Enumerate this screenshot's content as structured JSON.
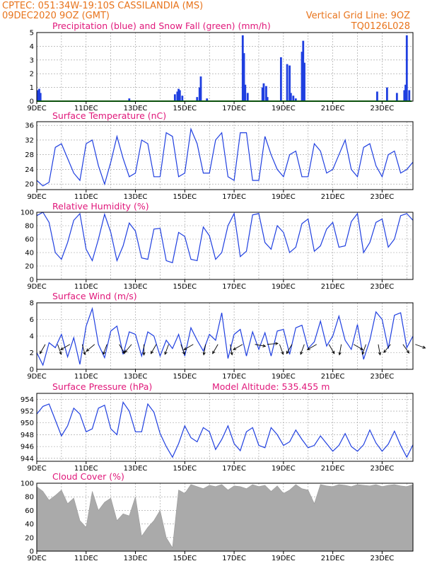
{
  "header": {
    "line1": "CPTEC:   051:34W-19:10S   CASSILANDIA (MS)",
    "line2": "09DEC2020 9OZ (GMT)",
    "grid_note": "Vertical Grid Line: 9OZ",
    "code": "TQ0126L028"
  },
  "colors": {
    "header": "#e8741c",
    "title": "#e0177a",
    "line": "#1f3fe0",
    "snow": "#18a018",
    "cloud": "#aaaaaa"
  },
  "x_ticks": [
    "9DEC",
    "11DEC",
    "13DEC",
    "15DEC",
    "17DEC",
    "19DEC",
    "21DEC",
    "23DEC"
  ],
  "chart_data": [
    {
      "type": "bar",
      "title": "Precipitation (blue) and Snow Fall (green) (mm/h)",
      "ylim": [
        0,
        5
      ],
      "yticks": [
        0,
        1,
        2,
        3,
        4,
        5
      ],
      "series": [
        {
          "name": "Precipitation",
          "color": "#1f3fe0",
          "x": [
            0.05,
            0.1,
            0.15,
            3.75,
            5.6,
            5.7,
            5.75,
            5.8,
            5.9,
            6.5,
            6.6,
            6.65,
            6.9,
            8.35,
            8.4,
            8.45,
            8.55,
            9.15,
            9.2,
            9.3,
            9.35,
            9.9,
            10.15,
            10.25,
            10.3,
            10.4,
            10.5,
            10.75,
            10.8,
            10.85,
            13.8,
            14.2,
            14.6,
            14.9,
            14.95,
            15.0,
            15.1
          ],
          "values": [
            0.8,
            0.9,
            0.6,
            0.2,
            0.5,
            0.7,
            0.9,
            0.8,
            0.4,
            0.3,
            1.0,
            1.8,
            0.2,
            4.8,
            3.5,
            1.2,
            0.6,
            1.0,
            1.3,
            1.1,
            0.3,
            3.2,
            2.7,
            2.6,
            0.6,
            0.4,
            0.2,
            3.6,
            4.4,
            2.8,
            0.7,
            1.0,
            0.6,
            0.8,
            1.2,
            4.8,
            0.8
          ]
        },
        {
          "name": "Snow Fall",
          "color": "#18a018",
          "x": [
            0,
            15.2
          ],
          "values": [
            0,
            0
          ]
        }
      ]
    },
    {
      "type": "line",
      "title": "Surface Temperature (nC)",
      "ylim": [
        18.5,
        37
      ],
      "yticks": [
        20,
        24,
        28,
        32,
        36
      ],
      "x": [
        0.0,
        0.25,
        0.5,
        0.75,
        1.0,
        1.25,
        1.5,
        1.75,
        2.0,
        2.25,
        2.5,
        2.75,
        3.0,
        3.25,
        3.5,
        3.75,
        4.0,
        4.25,
        4.5,
        4.75,
        5.0,
        5.25,
        5.5,
        5.75,
        6.0,
        6.25,
        6.5,
        6.75,
        7.0,
        7.25,
        7.5,
        7.75,
        8.0,
        8.25,
        8.5,
        8.75,
        9.0,
        9.25,
        9.5,
        9.75,
        10.0,
        10.25,
        10.5,
        10.75,
        11.0,
        11.25,
        11.5,
        11.75,
        12.0,
        12.25,
        12.5,
        12.75,
        13.0,
        13.25,
        13.5,
        13.75,
        14.0,
        14.25,
        14.5,
        14.75,
        15.0,
        15.25
      ],
      "values": [
        21,
        19.5,
        20.5,
        30,
        31,
        27,
        23,
        21,
        31,
        32,
        25,
        20,
        26,
        33,
        27,
        22,
        23,
        32,
        31,
        22,
        22,
        34,
        33,
        22,
        23,
        35,
        31,
        23,
        23,
        32,
        34,
        22,
        21,
        34,
        34,
        21,
        21,
        33,
        28,
        24,
        22,
        28,
        29,
        22,
        22,
        31,
        29,
        23,
        24,
        28,
        32,
        24,
        22,
        30,
        31,
        25,
        22,
        28,
        29,
        23,
        24,
        26
      ]
    },
    {
      "type": "line",
      "title": "Relative Humidity (%)",
      "ylim": [
        0,
        100
      ],
      "yticks": [
        0,
        20,
        40,
        60,
        80,
        100
      ],
      "x": [
        0.0,
        0.25,
        0.5,
        0.75,
        1.0,
        1.25,
        1.5,
        1.75,
        2.0,
        2.25,
        2.5,
        2.75,
        3.0,
        3.25,
        3.5,
        3.75,
        4.0,
        4.25,
        4.5,
        4.75,
        5.0,
        5.25,
        5.5,
        5.75,
        6.0,
        6.25,
        6.5,
        6.75,
        7.0,
        7.25,
        7.5,
        7.75,
        8.0,
        8.25,
        8.5,
        8.75,
        9.0,
        9.25,
        9.5,
        9.75,
        10.0,
        10.25,
        10.5,
        10.75,
        11.0,
        11.25,
        11.5,
        11.75,
        12.0,
        12.25,
        12.5,
        12.75,
        13.0,
        13.25,
        13.5,
        13.75,
        14.0,
        14.25,
        14.5,
        14.75,
        15.0,
        15.25
      ],
      "values": [
        95,
        100,
        85,
        40,
        30,
        55,
        88,
        98,
        45,
        28,
        60,
        97,
        70,
        28,
        50,
        84,
        72,
        32,
        30,
        75,
        76,
        28,
        25,
        70,
        64,
        30,
        28,
        78,
        65,
        30,
        40,
        80,
        98,
        34,
        42,
        96,
        98,
        55,
        45,
        80,
        70,
        40,
        48,
        83,
        90,
        42,
        50,
        75,
        85,
        48,
        50,
        86,
        98,
        40,
        55,
        85,
        90,
        48,
        60,
        95,
        98,
        88
      ]
    },
    {
      "type": "line",
      "title": "Surface Wind (m/s)",
      "ylim": [
        0,
        8
      ],
      "yticks": [
        0,
        2,
        4,
        6,
        8
      ],
      "x": [
        0.0,
        0.25,
        0.5,
        0.75,
        1.0,
        1.25,
        1.5,
        1.75,
        2.0,
        2.25,
        2.5,
        2.75,
        3.0,
        3.25,
        3.5,
        3.75,
        4.0,
        4.25,
        4.5,
        4.75,
        5.0,
        5.25,
        5.5,
        5.75,
        6.0,
        6.25,
        6.5,
        6.75,
        7.0,
        7.25,
        7.5,
        7.75,
        8.0,
        8.25,
        8.5,
        8.75,
        9.0,
        9.25,
        9.5,
        9.75,
        10.0,
        10.25,
        10.5,
        10.75,
        11.0,
        11.25,
        11.5,
        11.75,
        12.0,
        12.25,
        12.5,
        12.75,
        13.0,
        13.25,
        13.5,
        13.75,
        14.0,
        14.25,
        14.5,
        14.75,
        15.0,
        15.25
      ],
      "values": [
        2,
        0.5,
        3.2,
        2.6,
        4.2,
        1.5,
        3.8,
        0.6,
        5.2,
        7.3,
        3,
        1.4,
        4.6,
        5.2,
        1.8,
        4.5,
        4.2,
        1.6,
        4.5,
        4.0,
        1.6,
        3.5,
        2.5,
        4.2,
        1.6,
        5.0,
        3.5,
        2.2,
        4.2,
        3.5,
        6.8,
        1.3,
        4.2,
        4.8,
        1.6,
        4.5,
        2.4,
        4.4,
        1.6,
        4.6,
        4.8,
        1.8,
        5.0,
        5.3,
        2.5,
        3.3,
        5.8,
        2.8,
        4.0,
        6.4,
        3.5,
        2.4,
        5.4,
        1.2,
        3.5,
        6.9,
        6.0,
        2.5,
        6.5,
        6.8,
        2.6,
        4.0
      ],
      "arrows_deg": [
        330,
        20,
        300,
        15,
        310,
        340,
        30,
        320,
        0,
        330,
        340,
        20,
        300,
        350,
        330,
        10,
        300,
        80,
        95,
        20,
        330,
        340,
        300,
        30,
        350,
        60,
        340,
        10,
        320,
        35,
        70
      ]
    },
    {
      "type": "line",
      "title": "Surface Pressure (hPa)",
      "annotation": "Model Altitude: 535.455 m",
      "ylim": [
        943.5,
        955
      ],
      "yticks": [
        944,
        946,
        948,
        950,
        952,
        954
      ],
      "x": [
        0.0,
        0.25,
        0.5,
        0.75,
        1.0,
        1.25,
        1.5,
        1.75,
        2.0,
        2.25,
        2.5,
        2.75,
        3.0,
        3.25,
        3.5,
        3.75,
        4.0,
        4.25,
        4.5,
        4.75,
        5.0,
        5.25,
        5.5,
        5.75,
        6.0,
        6.25,
        6.5,
        6.75,
        7.0,
        7.25,
        7.5,
        7.75,
        8.0,
        8.25,
        8.5,
        8.75,
        9.0,
        9.25,
        9.5,
        9.75,
        10.0,
        10.25,
        10.5,
        10.75,
        11.0,
        11.25,
        11.5,
        11.75,
        12.0,
        12.25,
        12.5,
        12.75,
        13.0,
        13.25,
        13.5,
        13.75,
        14.0,
        14.25,
        14.5,
        14.75,
        15.0,
        15.25
      ],
      "values": [
        951.5,
        952.8,
        953.2,
        950.5,
        947.8,
        949.5,
        952.5,
        951.5,
        948.5,
        949,
        952.5,
        953,
        949,
        948,
        953.5,
        952,
        948.5,
        948.5,
        953.2,
        951.8,
        948.2,
        946,
        944.2,
        946.5,
        949.5,
        947.5,
        946.8,
        949.2,
        948.5,
        945.5,
        947.2,
        949.5,
        946.5,
        945.3,
        948.5,
        949.2,
        946.2,
        945.8,
        949.2,
        948,
        946.2,
        946.8,
        948.8,
        947.2,
        945.8,
        946.2,
        947.8,
        946.5,
        945.2,
        946.2,
        948.2,
        946,
        945.2,
        946.3,
        948.8,
        946.6,
        945.2,
        946.4,
        948.6,
        946.2,
        944.2,
        946.3
      ]
    },
    {
      "type": "area",
      "title": "Cloud Cover (%)",
      "ylim": [
        0,
        100
      ],
      "yticks": [
        0,
        20,
        40,
        60,
        80,
        100
      ],
      "x": [
        0.0,
        0.25,
        0.5,
        0.75,
        1.0,
        1.25,
        1.5,
        1.75,
        2.0,
        2.25,
        2.5,
        2.75,
        3.0,
        3.25,
        3.5,
        3.75,
        4.0,
        4.25,
        4.5,
        4.75,
        5.0,
        5.25,
        5.5,
        5.75,
        6.0,
        6.25,
        6.5,
        6.75,
        7.0,
        7.25,
        7.5,
        7.75,
        8.0,
        8.25,
        8.5,
        8.75,
        9.0,
        9.25,
        9.5,
        9.75,
        10.0,
        10.25,
        10.5,
        10.75,
        11.0,
        11.25,
        11.5,
        11.75,
        12.0,
        12.25,
        12.5,
        12.75,
        13.0,
        13.25,
        13.5,
        13.75,
        14.0,
        14.25,
        14.5,
        14.75,
        15.0,
        15.25
      ],
      "values": [
        95,
        88,
        75,
        82,
        90,
        70,
        78,
        45,
        35,
        88,
        60,
        72,
        78,
        45,
        55,
        52,
        80,
        22,
        35,
        45,
        60,
        20,
        5,
        90,
        85,
        98,
        95,
        92,
        97,
        95,
        98,
        90,
        96,
        95,
        92,
        98,
        95,
        97,
        88,
        96,
        85,
        90,
        98,
        92,
        90,
        70,
        98,
        96,
        95,
        98,
        97,
        95,
        98,
        97,
        96,
        98,
        95,
        97,
        98,
        96,
        95,
        98
      ]
    }
  ]
}
